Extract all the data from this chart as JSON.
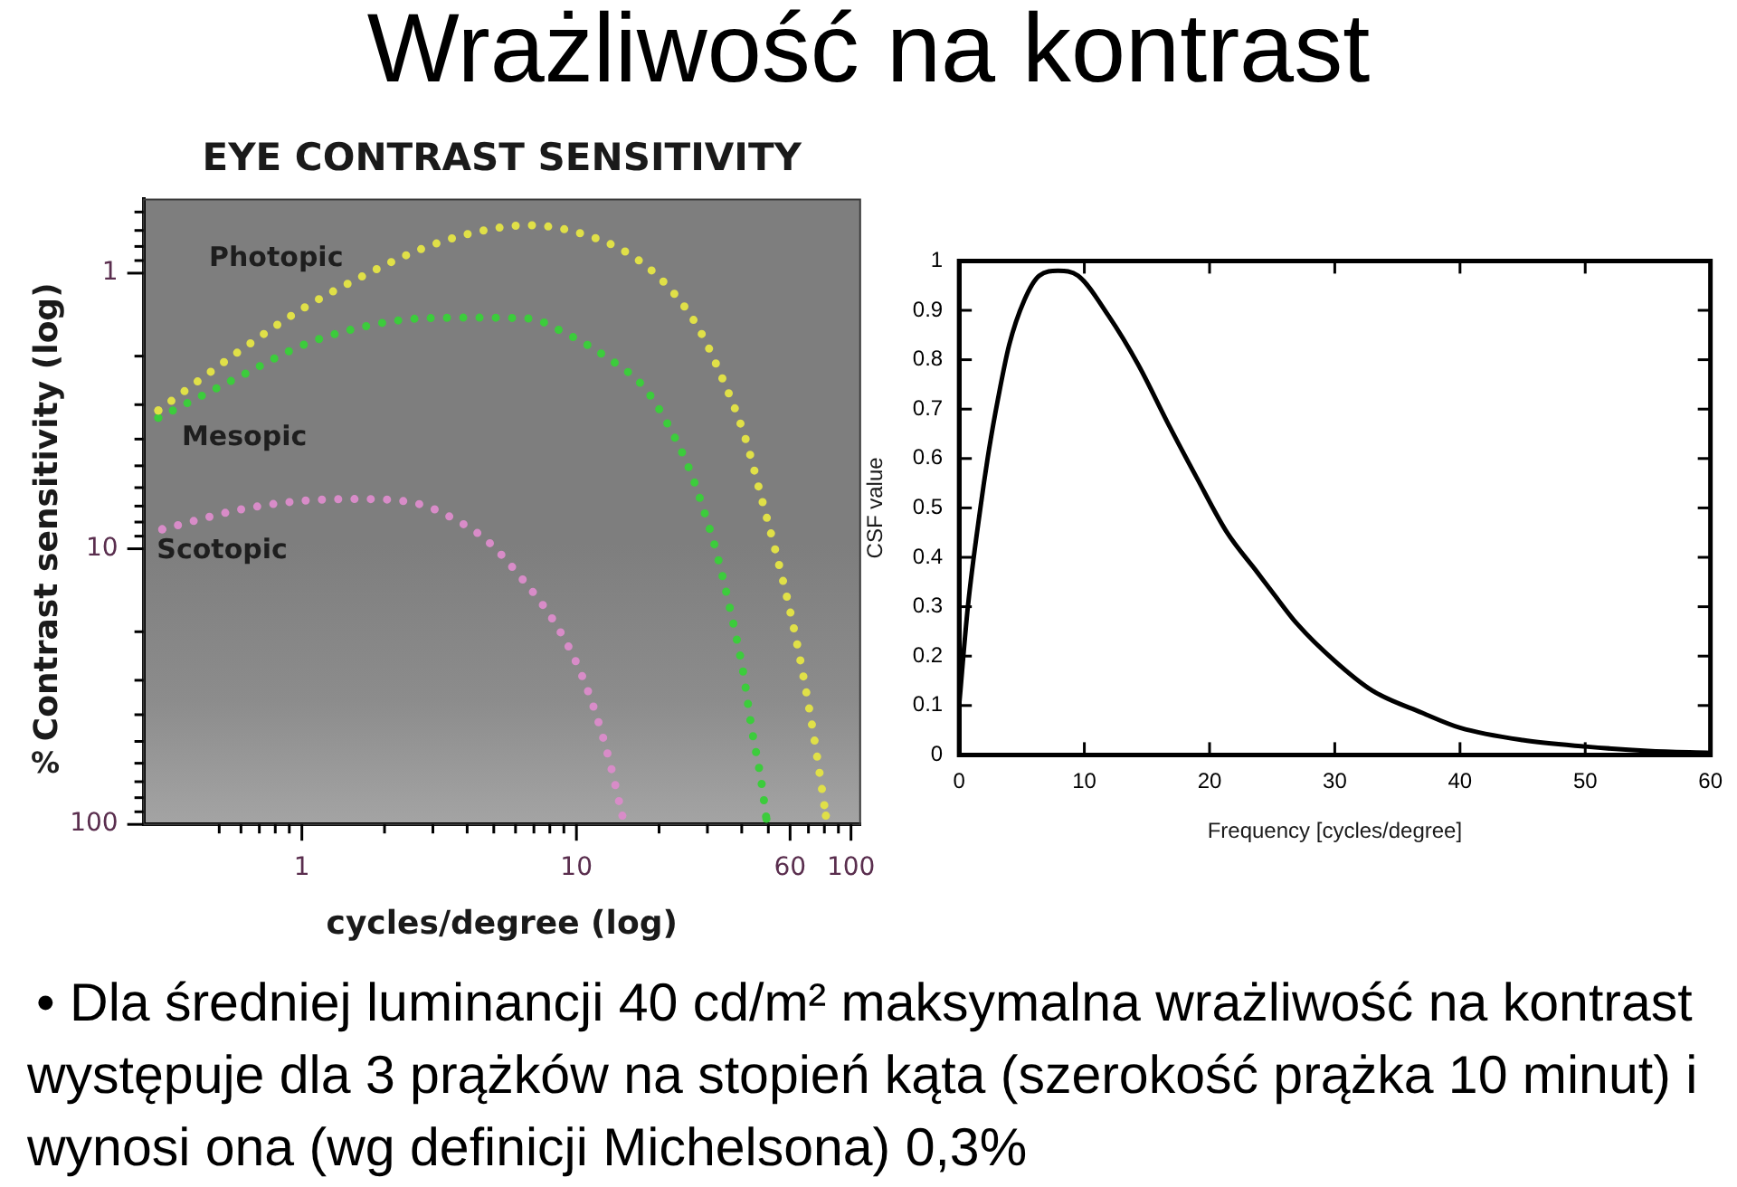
{
  "chart_data": [
    {
      "type": "other",
      "title": "Wrażliwość na kontrast",
      "annotations": [
        "• Dla średniej luminancji 40 cd/m² maksymalna wrażliwość na kontrast występuje dla 3 prążków na stopień kąta (szerokość prążka 10 minut) i wynosi ona (wg definicji Michelsona) 0,3%"
      ]
    },
    {
      "type": "line",
      "title": "EYE CONTRAST SENSITIVITY",
      "xlabel": "cycles/degree (log)",
      "ylabel": "Contrast sensitivity (log)",
      "annotations": [
        "%"
      ],
      "log": "xy",
      "line_style": "dotted",
      "xlim": [
        0.265,
        108
      ],
      "xticks": [
        {
          "value": 0.5,
          "label": null
        },
        {
          "value": 0.6,
          "label": null
        },
        {
          "value": 0.7,
          "label": null
        },
        {
          "value": 0.8,
          "label": null
        },
        {
          "value": 0.9,
          "label": null
        },
        1,
        {
          "value": 2,
          "label": null
        },
        {
          "value": 3,
          "label": null
        },
        {
          "value": 4,
          "label": null
        },
        {
          "value": 5,
          "label": null
        },
        {
          "value": 6,
          "label": null
        },
        {
          "value": 7,
          "label": null
        },
        {
          "value": 8,
          "label": null
        },
        {
          "value": 9,
          "label": null
        },
        10,
        {
          "value": 20,
          "label": null
        },
        {
          "value": 30,
          "label": null
        },
        {
          "value": 40,
          "label": null
        },
        {
          "value": 50,
          "label": null
        },
        60,
        {
          "value": 70,
          "label": null
        },
        {
          "value": 80,
          "label": null
        },
        {
          "value": 90,
          "label": null
        },
        100
      ],
      "ylim": [
        100,
        0.54
      ],
      "yticks": [
        {
          "value": 0.6,
          "label": null
        },
        {
          "value": 0.7,
          "label": null
        },
        {
          "value": 0.8,
          "label": null
        },
        {
          "value": 0.9,
          "label": null
        },
        1,
        {
          "value": 2,
          "label": null
        },
        {
          "value": 3,
          "label": null
        },
        {
          "value": 4,
          "label": null
        },
        {
          "value": 5,
          "label": null
        },
        {
          "value": 6,
          "label": null
        },
        {
          "value": 7,
          "label": null
        },
        {
          "value": 8,
          "label": null
        },
        {
          "value": 9,
          "label": null
        },
        10,
        {
          "value": 20,
          "label": null
        },
        {
          "value": 30,
          "label": null
        },
        {
          "value": 40,
          "label": null
        },
        {
          "value": 50,
          "label": null
        },
        {
          "value": 60,
          "label": null
        },
        {
          "value": 70,
          "label": null
        },
        {
          "value": 80,
          "label": null
        },
        {
          "value": 90,
          "label": null
        },
        100
      ],
      "series": [
        {
          "name": "Photopic",
          "color": "#e0e048",
          "x": [
            0.3,
            0.6,
            1,
            1.65,
            2.7,
            4.3,
            6.7,
            10.5,
            15.8,
            21.4,
            27.7,
            33.7,
            41,
            47.7,
            53,
            60,
            66.5,
            74,
            81
          ],
          "values": [
            3.15,
            1.9,
            1.35,
            1.03,
            0.82,
            0.71,
            0.67,
            0.72,
            0.86,
            1.11,
            1.57,
            2.36,
            3.9,
            6.8,
            10.1,
            16.8,
            27.7,
            51,
            93
          ]
        },
        {
          "name": "Mesopic",
          "color": "#3ccc3c",
          "x": [
            0.3,
            0.6,
            1,
            1.65,
            2.7,
            4.3,
            6.7,
            9.1,
            13,
            17.6,
            21.4,
            26.1,
            29.9,
            32.2,
            36.4,
            40.4,
            43.6,
            47,
            49.2
          ],
          "values": [
            3.35,
            2.36,
            1.83,
            1.57,
            1.46,
            1.45,
            1.46,
            1.65,
            2.03,
            2.59,
            3.5,
            5.3,
            7.9,
            10.1,
            16.8,
            27.7,
            45.6,
            68.6,
            95.5
          ]
        },
        {
          "name": "Scotopic",
          "color": "#d88cc8",
          "x": [
            0.31,
            0.6,
            1,
            1.65,
            2.7,
            3.5,
            4.7,
            6.4,
            8.3,
            10.1,
            11.7,
            13.2,
            14.7
          ],
          "values": [
            8.5,
            7.2,
            6.7,
            6.6,
            6.9,
            7.7,
            9.3,
            13,
            18.4,
            26.5,
            39,
            59,
            93
          ]
        }
      ]
    },
    {
      "type": "line",
      "xlabel": "Frequency [cycles/degree]",
      "ylabel": "CSF value",
      "color": "#000000",
      "x": [
        0,
        0.7,
        1.7,
        2.4,
        3.1,
        4,
        5.2,
        6.4,
        7.9,
        9.5,
        11.9,
        14.3,
        16.7,
        19,
        21.4,
        23.8,
        25,
        27,
        30,
        33,
        37,
        40,
        45,
        50,
        55,
        60
      ],
      "values": [
        0.1,
        0.3,
        0.5,
        0.62,
        0.72,
        0.83,
        0.92,
        0.97,
        0.98,
        0.97,
        0.89,
        0.79,
        0.67,
        0.56,
        0.45,
        0.37,
        0.33,
        0.265,
        0.19,
        0.13,
        0.085,
        0.055,
        0.03,
        0.017,
        0.008,
        0.004
      ],
      "xlim": [
        0,
        60
      ],
      "xticks": [
        0,
        10,
        20,
        30,
        40,
        50,
        60
      ],
      "ylim": [
        0,
        1
      ],
      "yticks": [
        0,
        0.1,
        0.2,
        0.3,
        0.4,
        0.5,
        0.6,
        0.7,
        0.8,
        0.9,
        1
      ]
    }
  ]
}
